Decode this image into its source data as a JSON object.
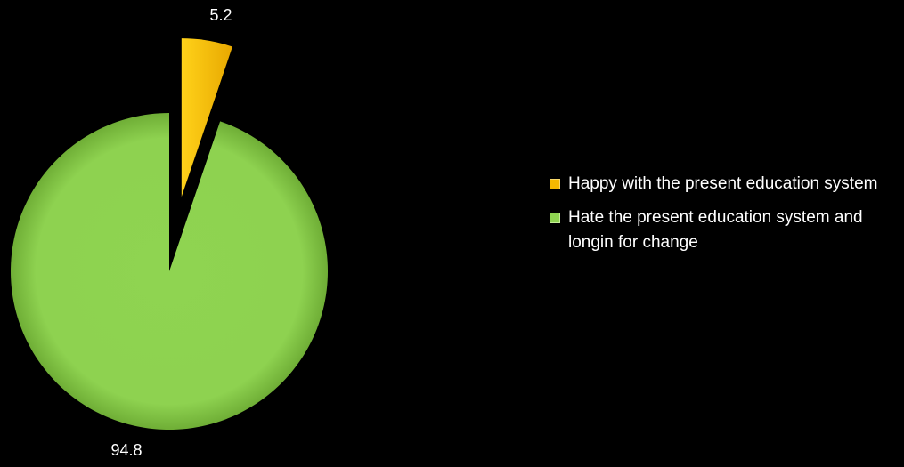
{
  "chart_data": {
    "type": "pie",
    "exploded": true,
    "start_angle_deg": 0,
    "direction": "clockwise",
    "slices": [
      {
        "label": "Happy with the present education system",
        "value": 5.2,
        "value_label": "5.2",
        "color": "#f5b800"
      },
      {
        "label": "Hate the present education system and longin for change",
        "value": 94.8,
        "value_label": "94.8",
        "color": "#8fd451"
      }
    ],
    "legend_position": "right"
  }
}
